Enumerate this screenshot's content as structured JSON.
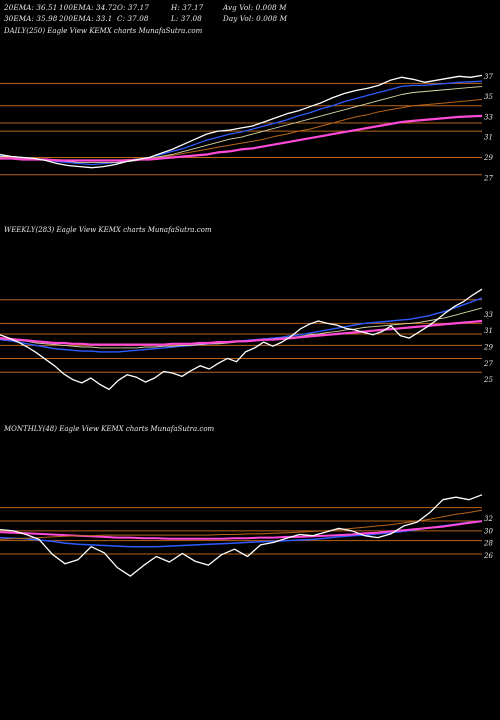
{
  "header": {
    "row1": [
      "20EMA: 36.51",
      "100EMA: 34.72",
      "O: 37.17",
      "H: 37.17",
      "Avg Vol: 0.008 M"
    ],
    "row2": [
      "30EMA: 35.98",
      "200EMA: 33.1",
      "C: 37.08",
      "L: 37.08",
      "Day Vol: 0.008 M"
    ]
  },
  "colors": {
    "background": "#000000",
    "price": "#ffffff",
    "ema_fast": "#2d5bff",
    "ema_slow": "#ff4bd8",
    "ema_mid": "#d8d8a8",
    "ema_brown": "#b8651a",
    "level_line": "#b8651a"
  },
  "chart_data": [
    {
      "type": "line",
      "title": "DAILY(250) Eagle  View  KEMX  charts MunafaSutra.com",
      "yticks": [
        37,
        35,
        33,
        31,
        29,
        27
      ],
      "ylim": [
        25.8,
        38.6
      ],
      "levels": [
        36.3,
        34.1,
        32.4,
        31.6,
        29.0,
        27.3
      ],
      "series": [
        {
          "role": "price",
          "values": [
            29.3,
            29.1,
            29.0,
            28.9,
            28.7,
            28.4,
            28.2,
            28.1,
            28.0,
            28.1,
            28.3,
            28.6,
            28.8,
            29.0,
            29.4,
            29.8,
            30.3,
            30.8,
            31.3,
            31.6,
            31.7,
            31.9,
            32.1,
            32.5,
            32.9,
            33.3,
            33.6,
            34.0,
            34.4,
            34.9,
            35.3,
            35.6,
            35.8,
            36.1,
            36.6,
            36.9,
            36.7,
            36.4,
            36.6,
            36.8,
            37.0,
            36.9,
            37.08
          ]
        },
        {
          "role": "ema-short",
          "values": [
            29.2,
            29.1,
            29.0,
            28.9,
            28.8,
            28.6,
            28.5,
            28.4,
            28.3,
            28.4,
            28.5,
            28.6,
            28.8,
            29.0,
            29.3,
            29.6,
            29.9,
            30.3,
            30.7,
            31.0,
            31.3,
            31.5,
            31.8,
            32.1,
            32.4,
            32.7,
            33.1,
            33.4,
            33.8,
            34.1,
            34.5,
            34.8,
            35.1,
            35.4,
            35.7,
            36.0,
            36.1,
            36.1,
            36.2,
            36.3,
            36.4,
            36.45,
            36.51
          ]
        },
        {
          "role": "ema-30",
          "values": [
            29.1,
            29.1,
            29.0,
            28.9,
            28.8,
            28.7,
            28.6,
            28.5,
            28.5,
            28.5,
            28.5,
            28.6,
            28.7,
            28.9,
            29.1,
            29.3,
            29.6,
            29.9,
            30.2,
            30.5,
            30.8,
            31.0,
            31.3,
            31.6,
            31.9,
            32.2,
            32.5,
            32.8,
            33.1,
            33.4,
            33.7,
            34.0,
            34.3,
            34.6,
            34.9,
            35.2,
            35.4,
            35.5,
            35.6,
            35.7,
            35.8,
            35.9,
            35.98
          ]
        },
        {
          "role": "ema-100",
          "values": [
            29.0,
            29.0,
            28.9,
            28.9,
            28.8,
            28.8,
            28.7,
            28.7,
            28.7,
            28.7,
            28.7,
            28.8,
            28.8,
            28.9,
            29.0,
            29.2,
            29.4,
            29.6,
            29.8,
            30.0,
            30.2,
            30.4,
            30.6,
            30.8,
            31.1,
            31.3,
            31.6,
            31.8,
            32.1,
            32.4,
            32.7,
            33.0,
            33.2,
            33.5,
            33.7,
            33.9,
            34.1,
            34.2,
            34.3,
            34.4,
            34.5,
            34.6,
            34.72
          ]
        },
        {
          "role": "ema-200",
          "values": [
            28.9,
            28.9,
            28.8,
            28.8,
            28.8,
            28.7,
            28.7,
            28.7,
            28.7,
            28.7,
            28.7,
            28.7,
            28.8,
            28.8,
            28.9,
            29.0,
            29.1,
            29.2,
            29.3,
            29.5,
            29.6,
            29.8,
            29.9,
            30.1,
            30.3,
            30.5,
            30.7,
            30.9,
            31.1,
            31.3,
            31.5,
            31.7,
            31.9,
            32.1,
            32.3,
            32.5,
            32.6,
            32.7,
            32.8,
            32.9,
            33.0,
            33.05,
            33.1
          ]
        }
      ]
    },
    {
      "type": "line",
      "title": "WEEKLY(283) Eagle  View  KEMX  charts MunafaSutra.com",
      "yticks": [
        33,
        31,
        29,
        27,
        25
      ],
      "ylim": [
        22.5,
        36.0
      ],
      "levels": [
        34.8,
        31.9,
        30.6,
        29.2,
        27.6,
        25.9
      ],
      "series": [
        {
          "role": "price",
          "values": [
            30.5,
            30.1,
            29.6,
            29.0,
            28.3,
            27.5,
            26.7,
            25.7,
            25.0,
            24.6,
            25.2,
            24.4,
            23.8,
            24.9,
            25.6,
            25.3,
            24.7,
            25.2,
            26.0,
            25.8,
            25.4,
            26.1,
            26.7,
            26.3,
            27.0,
            27.6,
            27.2,
            28.4,
            28.9,
            29.6,
            29.1,
            29.6,
            30.3,
            31.2,
            31.8,
            32.2,
            31.9,
            31.7,
            31.3,
            31.1,
            30.8,
            30.5,
            30.9,
            31.6,
            30.4,
            30.1,
            30.8,
            31.5,
            32.3,
            33.2,
            34.0,
            34.6,
            35.4,
            36.1
          ]
        },
        {
          "role": "ema-fast",
          "values": [
            29.9,
            29.8,
            29.6,
            29.4,
            29.2,
            29.0,
            28.8,
            28.7,
            28.6,
            28.5,
            28.5,
            28.4,
            28.4,
            28.4,
            28.5,
            28.6,
            28.7,
            28.8,
            28.9,
            29.0,
            29.1,
            29.2,
            29.3,
            29.4,
            29.5,
            29.6,
            29.7,
            29.8,
            29.9,
            30.0,
            30.1,
            30.2,
            30.4,
            30.5,
            30.7,
            30.9,
            31.1,
            31.3,
            31.5,
            31.7,
            31.9,
            32.0,
            32.1,
            32.2,
            32.3,
            32.4,
            32.6,
            32.8,
            33.1,
            33.4,
            33.8,
            34.2,
            34.6,
            35.0
          ]
        },
        {
          "role": "ema-mid",
          "values": [
            30.0,
            29.9,
            29.8,
            29.7,
            29.5,
            29.4,
            29.3,
            29.2,
            29.1,
            29.0,
            29.0,
            28.9,
            28.9,
            28.9,
            28.9,
            28.9,
            29.0,
            29.0,
            29.1,
            29.1,
            29.2,
            29.2,
            29.3,
            29.4,
            29.4,
            29.5,
            29.6,
            29.7,
            29.8,
            29.9,
            30.0,
            30.1,
            30.2,
            30.3,
            30.5,
            30.6,
            30.8,
            30.9,
            31.1,
            31.2,
            31.4,
            31.5,
            31.6,
            31.7,
            31.8,
            31.9,
            32.0,
            32.2,
            32.4,
            32.6,
            32.9,
            33.2,
            33.5,
            33.8
          ]
        },
        {
          "role": "ema-slow",
          "values": [
            30.1,
            30.0,
            29.9,
            29.8,
            29.7,
            29.6,
            29.5,
            29.5,
            29.4,
            29.4,
            29.3,
            29.3,
            29.3,
            29.3,
            29.3,
            29.3,
            29.3,
            29.3,
            29.3,
            29.4,
            29.4,
            29.4,
            29.5,
            29.5,
            29.6,
            29.6,
            29.7,
            29.7,
            29.8,
            29.9,
            29.9,
            30.0,
            30.1,
            30.2,
            30.3,
            30.4,
            30.5,
            30.6,
            30.7,
            30.8,
            30.9,
            31.0,
            31.1,
            31.2,
            31.3,
            31.4,
            31.5,
            31.6,
            31.7,
            31.8,
            31.9,
            32.0,
            32.1,
            32.2
          ]
        }
      ]
    },
    {
      "type": "line",
      "title": "MONTHLY(48) Eagle  View  KEMX  charts MunafaSutra.com",
      "yticks": [
        32,
        30,
        28,
        26
      ],
      "ylim": [
        19.5,
        37.5
      ],
      "levels": [
        33.8,
        31.6,
        30.0,
        28.4,
        26.2
      ],
      "series": [
        {
          "role": "price",
          "values": [
            30.2,
            30.0,
            29.4,
            28.6,
            26.2,
            24.6,
            25.3,
            27.4,
            26.4,
            24.0,
            22.6,
            24.3,
            25.8,
            24.9,
            26.3,
            25.0,
            24.4,
            26.1,
            27.0,
            25.8,
            27.7,
            28.1,
            28.8,
            29.4,
            29.2,
            29.8,
            30.4,
            30.0,
            29.2,
            28.9,
            29.5,
            30.8,
            31.4,
            33.0,
            35.1,
            35.5,
            35.1,
            35.9
          ]
        },
        {
          "role": "ema-blue",
          "values": [
            28.9,
            28.8,
            28.7,
            28.5,
            28.3,
            28.0,
            27.8,
            27.7,
            27.6,
            27.5,
            27.4,
            27.4,
            27.4,
            27.5,
            27.6,
            27.7,
            27.8,
            27.9,
            28.0,
            28.1,
            28.2,
            28.3,
            28.4,
            28.5,
            28.6,
            28.8,
            29.0,
            29.2,
            29.3,
            29.5,
            29.7,
            29.9,
            30.2,
            30.5,
            30.8,
            31.1,
            31.4,
            31.6
          ]
        },
        {
          "role": "ema-pink",
          "values": [
            29.8,
            29.7,
            29.6,
            29.5,
            29.4,
            29.3,
            29.2,
            29.1,
            29.0,
            28.9,
            28.9,
            28.8,
            28.8,
            28.7,
            28.7,
            28.7,
            28.7,
            28.7,
            28.8,
            28.8,
            28.9,
            28.9,
            29.0,
            29.0,
            29.1,
            29.2,
            29.3,
            29.4,
            29.6,
            29.7,
            29.9,
            30.1,
            30.3,
            30.5,
            30.7,
            31.0,
            31.3,
            31.6
          ]
        },
        {
          "role": "ema-brown",
          "values": [
            28.6,
            28.7,
            28.8,
            28.9,
            29.0,
            29.1,
            29.2,
            29.2,
            29.3,
            29.3,
            29.3,
            29.3,
            29.3,
            29.3,
            29.3,
            29.3,
            29.3,
            29.4,
            29.4,
            29.5,
            29.5,
            29.6,
            29.7,
            29.8,
            29.9,
            30.0,
            30.2,
            30.4,
            30.6,
            30.8,
            31.0,
            31.3,
            31.6,
            31.9,
            32.3,
            32.7,
            33.0,
            33.4
          ]
        }
      ]
    }
  ]
}
